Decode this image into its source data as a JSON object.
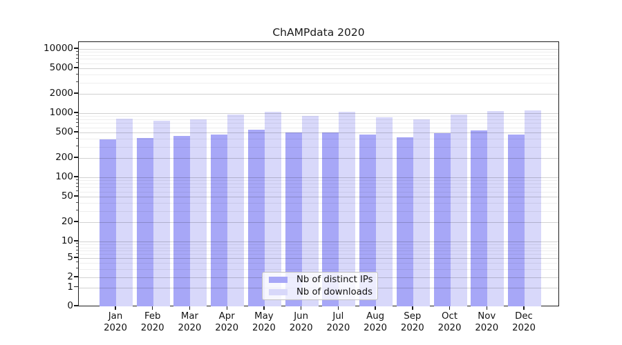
{
  "title": "ChAMPdata 2020",
  "colors": {
    "background": "#ffffff",
    "axis": "#1c1c1c",
    "grid_major": "#c9c9c9",
    "grid_minor": "#ededed",
    "legend_border": "#c0c0c0"
  },
  "chart_data": {
    "type": "bar",
    "title": "ChAMPdata 2020",
    "categories": [
      "Jan",
      "Feb",
      "Mar",
      "Apr",
      "May",
      "Jun",
      "Jul",
      "Aug",
      "Sep",
      "Oct",
      "Nov",
      "Dec"
    ],
    "category_year": "2020",
    "series": [
      {
        "name": "Nb of distinct IPs",
        "color": "#a7a7f7",
        "values": [
          390,
          415,
          440,
          460,
          550,
          495,
          505,
          460,
          425,
          490,
          545,
          460
        ]
      },
      {
        "name": "Nb of downloads",
        "color": "#d8d8fa",
        "values": [
          820,
          760,
          800,
          940,
          1050,
          900,
          1060,
          860,
          795,
          950,
          1090,
          1100
        ]
      }
    ],
    "yscale": "symlog",
    "y_ticks": [
      0,
      1,
      2,
      5,
      10,
      20,
      50,
      100,
      200,
      500,
      1000,
      2000,
      5000,
      10000
    ],
    "ylim": [
      0,
      12800
    ],
    "grid": true,
    "legend_position": "lower center"
  }
}
